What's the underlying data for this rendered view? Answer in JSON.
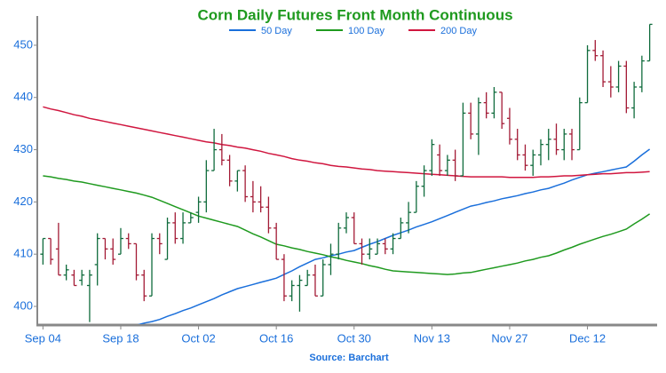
{
  "chart_data": {
    "type": "ohlc",
    "title": "Corn Daily Futures Front Month Continuous",
    "source": "Source: Barchart",
    "title_color": "#1f9a1f",
    "text_color": "#1a6fdb",
    "legend": "top",
    "categories": [
      "Sep 04",
      null,
      null,
      null,
      null,
      null,
      null,
      null,
      null,
      null,
      "Sep 18",
      null,
      null,
      null,
      null,
      null,
      null,
      null,
      null,
      null,
      "Oct 02",
      null,
      null,
      null,
      null,
      null,
      null,
      null,
      null,
      null,
      "Oct 16",
      null,
      null,
      null,
      null,
      null,
      null,
      null,
      null,
      null,
      "Oct 30",
      null,
      null,
      null,
      null,
      null,
      null,
      null,
      null,
      null,
      "Nov 13",
      null,
      null,
      null,
      null,
      null,
      null,
      null,
      null,
      null,
      "Nov 27",
      null,
      null,
      null,
      null,
      null,
      null,
      null,
      null,
      null,
      "Dec 12",
      null,
      null,
      null,
      null,
      null,
      null,
      null,
      null
    ],
    "open": [
      410,
      413,
      411,
      406,
      406,
      405,
      404,
      408,
      413,
      411,
      410,
      413,
      412,
      406,
      402,
      413,
      409,
      416,
      413,
      416,
      418,
      420,
      426,
      430,
      428,
      424,
      426,
      421,
      420,
      419,
      415,
      409,
      402,
      404,
      404,
      406,
      402,
      408,
      410,
      415,
      417,
      412,
      410,
      410,
      412,
      411,
      413,
      416,
      418,
      423,
      426,
      429,
      426,
      428,
      425,
      437,
      433,
      439,
      437,
      441,
      436,
      432,
      429,
      427,
      429,
      431,
      432,
      430,
      433,
      430,
      439,
      449,
      448,
      443,
      442,
      446,
      438,
      442,
      447
    ],
    "high": [
      413,
      413,
      416,
      408,
      407,
      407,
      407,
      414,
      413,
      413,
      415,
      414,
      412,
      407,
      414,
      414,
      417,
      418,
      418,
      418,
      421,
      428,
      434,
      433,
      429,
      426,
      427,
      424,
      423,
      421,
      416,
      410,
      405,
      406,
      407,
      408,
      409,
      412,
      416,
      418,
      418,
      413,
      413,
      413,
      413,
      414,
      417,
      420,
      424,
      427,
      432,
      431,
      429,
      430,
      439,
      439,
      440,
      441,
      442,
      441,
      438,
      434,
      431,
      430,
      432,
      434,
      435,
      434,
      434,
      440,
      450,
      451,
      449,
      446,
      447,
      447,
      443,
      448,
      454
    ],
    "low": [
      408,
      408,
      406,
      405,
      404,
      404,
      397,
      404,
      409,
      408,
      410,
      411,
      405,
      401,
      402,
      410,
      409,
      412,
      412,
      416,
      416,
      418,
      426,
      427,
      423,
      422,
      420,
      418,
      418,
      414,
      409,
      401,
      401,
      399,
      404,
      402,
      402,
      406,
      409,
      414,
      412,
      408,
      409,
      410,
      410,
      410,
      413,
      414,
      418,
      421,
      425,
      425,
      425,
      424,
      425,
      432,
      429,
      436,
      436,
      434,
      431,
      428,
      426,
      425,
      427,
      428,
      429,
      428,
      428,
      430,
      439,
      447,
      442,
      440,
      441,
      437,
      436,
      441,
      447
    ],
    "close": [
      413,
      409,
      406,
      407,
      404,
      406,
      406,
      413,
      411,
      409,
      413,
      412,
      406,
      402,
      413,
      412,
      416,
      413,
      416,
      417,
      420,
      426,
      430,
      428,
      424,
      426,
      421,
      420,
      419,
      415,
      409,
      402,
      404,
      405,
      406,
      402,
      408,
      410,
      415,
      417,
      412,
      410,
      411,
      412,
      411,
      413,
      416,
      418,
      423,
      426,
      431,
      426,
      428,
      425,
      437,
      433,
      439,
      437,
      441,
      435,
      432,
      429,
      427,
      429,
      431,
      432,
      430,
      433,
      430,
      439,
      449,
      448,
      443,
      442,
      446,
      438,
      442,
      447,
      454
    ],
    "up_color": "#0f6b3c",
    "down_color": "#a31a35",
    "series": [
      {
        "name": "50 Day",
        "color": "#1a6fdb",
        "values": [
          null,
          null,
          null,
          null,
          null,
          null,
          null,
          null,
          null,
          null,
          null,
          null,
          396.4,
          396.8,
          397.1,
          397.5,
          398.1,
          398.6,
          399.2,
          399.7,
          400.3,
          400.9,
          401.5,
          402.2,
          402.8,
          403.4,
          403.8,
          404.2,
          404.6,
          405.0,
          405.4,
          406.1,
          406.8,
          407.6,
          408.3,
          409.0,
          409.3,
          409.7,
          410.0,
          410.4,
          410.7,
          411.3,
          411.9,
          412.4,
          413.0,
          413.6,
          414.1,
          414.6,
          415.2,
          415.7,
          416.2,
          416.8,
          417.4,
          418.0,
          418.6,
          419.2,
          419.5,
          419.9,
          420.2,
          420.6,
          420.9,
          421.2,
          421.6,
          421.9,
          422.3,
          422.6,
          423.1,
          423.6,
          424.2,
          424.7,
          425.2,
          425.5,
          425.8,
          426.1,
          426.4,
          426.7,
          427.8,
          429.0,
          430.1
        ]
      },
      {
        "name": "100 Day",
        "color": "#1f9a1f",
        "values": [
          425.0,
          424.8,
          424.5,
          424.3,
          424.0,
          423.8,
          423.5,
          423.2,
          422.9,
          422.6,
          422.3,
          422.0,
          421.7,
          421.3,
          420.9,
          420.3,
          419.7,
          419.1,
          418.5,
          417.9,
          417.3,
          416.9,
          416.5,
          416.1,
          415.7,
          415.3,
          414.6,
          413.9,
          413.3,
          412.6,
          411.9,
          411.6,
          411.2,
          410.9,
          410.5,
          410.2,
          409.9,
          409.5,
          409.2,
          408.8,
          408.5,
          408.2,
          407.8,
          407.5,
          407.1,
          406.8,
          406.7,
          406.6,
          406.5,
          406.4,
          406.3,
          406.2,
          406.1,
          406.2,
          406.4,
          406.5,
          406.8,
          407.1,
          407.4,
          407.7,
          408.0,
          408.3,
          408.7,
          409.0,
          409.4,
          409.7,
          410.2,
          410.8,
          411.3,
          411.9,
          412.4,
          412.9,
          413.4,
          413.8,
          414.3,
          414.8,
          415.8,
          416.7,
          417.7
        ]
      },
      {
        "name": "200 Day",
        "color": "#d0163f",
        "values": [
          438.2,
          437.8,
          437.5,
          437.1,
          436.7,
          436.4,
          436.0,
          435.7,
          435.4,
          435.1,
          434.8,
          434.5,
          434.2,
          433.9,
          433.6,
          433.3,
          433.0,
          432.7,
          432.4,
          432.1,
          431.8,
          431.5,
          431.3,
          431.0,
          430.8,
          430.5,
          430.3,
          430.0,
          429.7,
          429.3,
          429.0,
          428.7,
          428.3,
          428.0,
          427.8,
          427.5,
          427.3,
          427.0,
          426.8,
          426.7,
          426.5,
          426.3,
          426.2,
          426.0,
          425.9,
          425.8,
          425.7,
          425.6,
          425.5,
          425.4,
          425.3,
          425.2,
          425.1,
          425.0,
          424.9,
          424.8,
          424.8,
          424.8,
          424.8,
          424.8,
          424.7,
          424.7,
          424.7,
          424.7,
          424.8,
          424.8,
          424.9,
          425.0,
          425.0,
          425.1,
          425.2,
          425.3,
          425.4,
          425.4,
          425.5,
          425.6,
          425.6,
          425.7,
          425.8
        ]
      }
    ],
    "ylim": [
      396.6,
      455.6
    ],
    "yticks": [
      400,
      410,
      420,
      430,
      440,
      450
    ]
  }
}
